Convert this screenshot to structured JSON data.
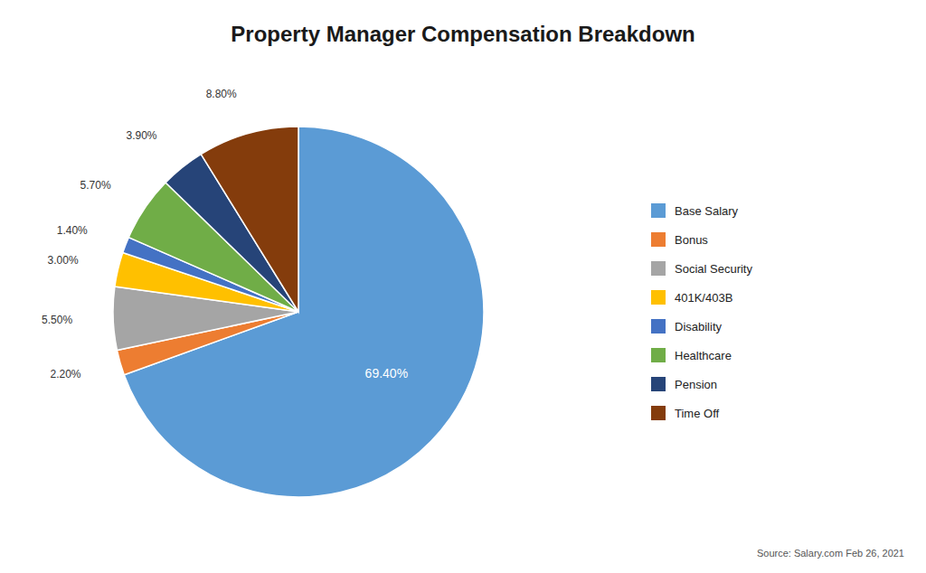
{
  "chart_data": {
    "type": "pie",
    "title": "Property Manager Compensation Breakdown",
    "categories": [
      "Base Salary",
      "Bonus",
      "Social Security",
      "401K/403B",
      "Disability",
      "Healthcare",
      "Pension",
      "Time Off"
    ],
    "values": [
      69.4,
      2.2,
      5.5,
      3.0,
      1.4,
      5.7,
      3.9,
      8.8
    ],
    "value_labels": [
      "69.40%",
      "2.20%",
      "5.50%",
      "3.00%",
      "1.40%",
      "5.70%",
      "3.90%",
      "8.80%"
    ],
    "colors": [
      "#5B9BD5",
      "#ED7D31",
      "#A5A5A5",
      "#FFC000",
      "#4472C4",
      "#70AD47",
      "#264478",
      "#843C0C"
    ],
    "data_labels": true,
    "legend": "right",
    "annotations": [
      "Source: Salary.com Feb 26, 2021"
    ]
  }
}
